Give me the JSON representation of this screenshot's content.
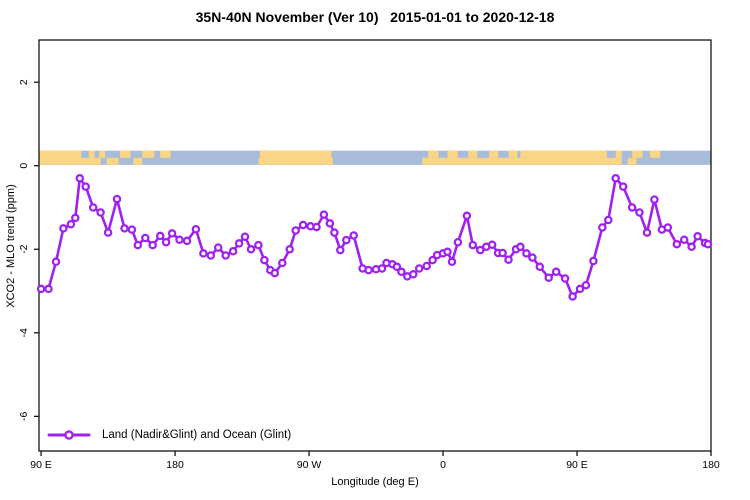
{
  "chart_data": {
    "type": "line",
    "title": "35N-40N November (Ver 10)   2015-01-01 to 2020-12-18",
    "xlabel": "Longitude (deg E)",
    "ylabel": "XCO2 - MLO trend (ppm)",
    "xlim": [
      88.6,
      540
    ],
    "ylim": [
      -6.83,
      3.01
    ],
    "x_ticks": [
      {
        "t": 90,
        "label": "90 E"
      },
      {
        "t": 180,
        "label": "180"
      },
      {
        "t": 270,
        "label": "90 W"
      },
      {
        "t": 360,
        "label": "0"
      },
      {
        "t": 450,
        "label": "90 E"
      },
      {
        "t": 540,
        "label": "180"
      }
    ],
    "y_ticks": [
      {
        "v": 2,
        "label": "2"
      },
      {
        "v": 0,
        "label": "0"
      },
      {
        "v": -2,
        "label": "-2"
      },
      {
        "v": -4,
        "label": "-4"
      },
      {
        "v": -6,
        "label": "-6"
      }
    ],
    "legend": {
      "label": "Land (Nadir&Glint) and Ocean (Glint)"
    },
    "series": [
      {
        "name": "Land (Nadir&Glint) and Ocean (Glint)",
        "color": "#A020F0",
        "marker": "open-circle",
        "points": [
          [
            90,
            -2.95
          ],
          [
            95,
            -2.95
          ],
          [
            100,
            -2.3
          ],
          [
            105,
            -1.5
          ],
          [
            110,
            -1.4
          ],
          [
            113,
            -1.25
          ],
          [
            116,
            -0.3
          ],
          [
            120,
            -0.5
          ],
          [
            125,
            -1.0
          ],
          [
            130,
            -1.12
          ],
          [
            135,
            -1.6
          ],
          [
            141,
            -0.8
          ],
          [
            146,
            -1.5
          ],
          [
            151,
            -1.53
          ],
          [
            155,
            -1.9
          ],
          [
            160,
            -1.73
          ],
          [
            165,
            -1.9
          ],
          [
            170,
            -1.68
          ],
          [
            174,
            -1.83
          ],
          [
            178,
            -1.62
          ],
          [
            183,
            -1.77
          ],
          [
            188,
            -1.8
          ],
          [
            194,
            -1.52
          ],
          [
            199,
            -2.1
          ],
          [
            204,
            -2.15
          ],
          [
            209,
            -1.96
          ],
          [
            214,
            -2.15
          ],
          [
            219,
            -2.05
          ],
          [
            223,
            -1.86
          ],
          [
            227,
            -1.7
          ],
          [
            231,
            -2.0
          ],
          [
            236,
            -1.9
          ],
          [
            240,
            -2.26
          ],
          [
            244,
            -2.5
          ],
          [
            247,
            -2.57
          ],
          [
            252,
            -2.33
          ],
          [
            257,
            -2.0
          ],
          [
            261,
            -1.55
          ],
          [
            266,
            -1.42
          ],
          [
            271,
            -1.45
          ],
          [
            275,
            -1.47
          ],
          [
            280,
            -1.17
          ],
          [
            284,
            -1.38
          ],
          [
            287,
            -1.6
          ],
          [
            291,
            -2.02
          ],
          [
            295,
            -1.78
          ],
          [
            300,
            -1.67
          ],
          [
            306,
            -2.46
          ],
          [
            310,
            -2.5
          ],
          [
            315,
            -2.48
          ],
          [
            319,
            -2.46
          ],
          [
            322,
            -2.33
          ],
          [
            326,
            -2.36
          ],
          [
            329,
            -2.42
          ],
          [
            332,
            -2.54
          ],
          [
            336,
            -2.65
          ],
          [
            340,
            -2.6
          ],
          [
            344,
            -2.46
          ],
          [
            349,
            -2.4
          ],
          [
            353,
            -2.26
          ],
          [
            356,
            -2.14
          ],
          [
            360,
            -2.1
          ],
          [
            363,
            -2.06
          ],
          [
            366,
            -2.3
          ],
          [
            370,
            -1.83
          ],
          [
            376,
            -1.2
          ],
          [
            380,
            -1.9
          ],
          [
            385,
            -2.02
          ],
          [
            389,
            -1.94
          ],
          [
            393,
            -1.89
          ],
          [
            397,
            -2.09
          ],
          [
            400,
            -2.09
          ],
          [
            404,
            -2.25
          ],
          [
            409,
            -2.0
          ],
          [
            412,
            -1.94
          ],
          [
            416,
            -2.1
          ],
          [
            420,
            -2.2
          ],
          [
            425,
            -2.42
          ],
          [
            431,
            -2.68
          ],
          [
            436,
            -2.54
          ],
          [
            442,
            -2.7
          ],
          [
            447,
            -3.13
          ],
          [
            452,
            -2.95
          ],
          [
            456,
            -2.86
          ],
          [
            461,
            -2.28
          ],
          [
            467,
            -1.48
          ],
          [
            471,
            -1.3
          ],
          [
            476,
            -0.3
          ],
          [
            481,
            -0.5
          ],
          [
            487,
            -1.0
          ],
          [
            492,
            -1.12
          ],
          [
            497,
            -1.6
          ],
          [
            502,
            -0.81
          ],
          [
            507,
            -1.53
          ],
          [
            511,
            -1.48
          ],
          [
            517,
            -1.88
          ],
          [
            522,
            -1.77
          ],
          [
            527,
            -1.94
          ],
          [
            531,
            -1.69
          ],
          [
            536,
            -1.85
          ],
          [
            538,
            -1.88
          ]
        ]
      }
    ],
    "map_strip": {
      "description": "land/ocean band along 35N-40N plotted just above y=0",
      "land_color": "#FAD584",
      "ocean_color": "#A8BBD8",
      "value_top": 0.36,
      "value_bottom": 0.02,
      "top_row_land": [
        [
          88.6,
          117
        ],
        [
          122,
          126
        ],
        [
          129,
          133
        ],
        [
          143,
          150
        ],
        [
          158,
          166
        ],
        [
          170,
          177
        ],
        [
          237,
          285
        ],
        [
          350,
          357
        ],
        [
          363,
          370
        ],
        [
          377,
          383
        ],
        [
          391,
          397
        ],
        [
          404,
          410
        ],
        [
          412,
          470
        ],
        [
          476,
          480
        ],
        [
          487,
          494
        ],
        [
          499,
          506
        ]
      ],
      "bottom_row_land": [
        [
          88.6,
          130
        ],
        [
          134,
          142
        ],
        [
          152,
          158
        ],
        [
          236,
          286
        ],
        [
          346,
          480
        ],
        [
          484,
          490
        ]
      ]
    },
    "grid": false,
    "legend_position": "bottom-left-inside",
    "axis_color": "#000000"
  }
}
